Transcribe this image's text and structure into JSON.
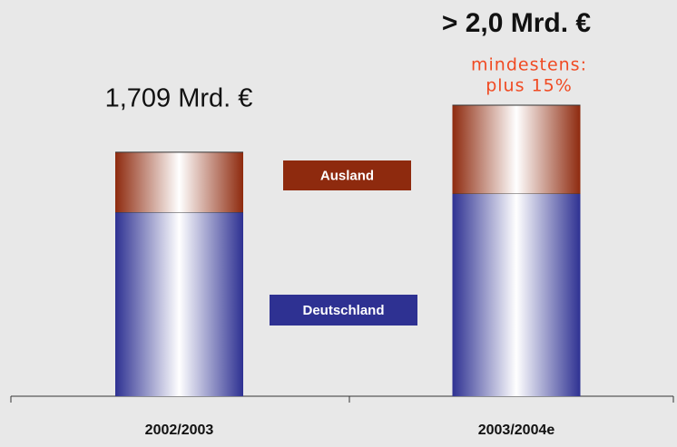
{
  "chart_data": {
    "type": "bar",
    "stacked": true,
    "categories": [
      "2002/2003",
      "2003/2004e"
    ],
    "series": [
      {
        "name": "Deutschland",
        "color": "#2e3192",
        "values": [
          1.29,
          1.42
        ]
      },
      {
        "name": "Ausland",
        "color": "#8e2a0e",
        "values": [
          0.42,
          0.62
        ]
      }
    ],
    "annotations": [
      "1,709 Mrd. €",
      "> 2,0 Mrd. €",
      "mindestens:",
      "plus 15%"
    ],
    "annotation_color": "#f04a22"
  }
}
